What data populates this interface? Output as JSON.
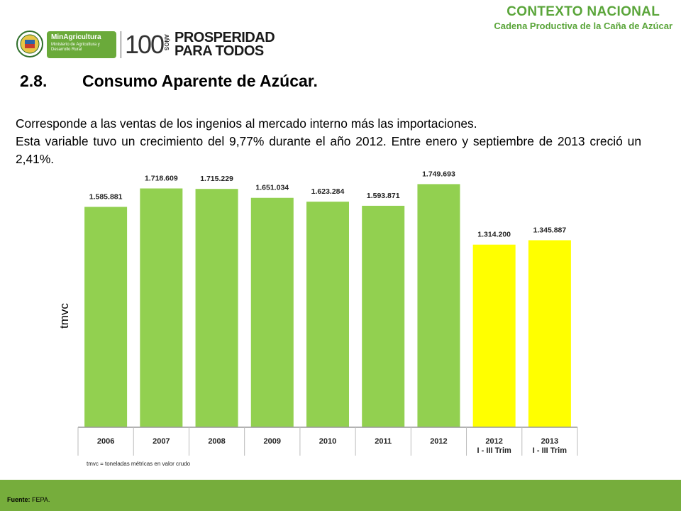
{
  "header": {
    "context_title": "CONTEXTO NACIONAL",
    "context_subtitle": "Cadena Productiva de la Caña de Azúcar",
    "ministry_name": "MinAgricultura",
    "ministry_subtitle": "Ministerio de Agricultura y Desarrollo Rural",
    "hundred": "100",
    "anos": "AÑOS",
    "prosperidad_line1": "PROSPERIDAD",
    "prosperidad_line2": "PARA TODOS"
  },
  "section": {
    "number": "2.8.",
    "title": "Consumo Aparente de Azúcar."
  },
  "paragraph": {
    "line1": "Corresponde a las ventas de los ingenios al mercado interno más las importaciones.",
    "line2": "Esta variable tuvo un crecimiento del 9,77% durante el año 2012. Entre enero y septiembre de 2013 creció un 2,41%."
  },
  "chart_data": {
    "type": "bar",
    "ylabel": "tmvc",
    "categories": [
      [
        "2006"
      ],
      [
        "2007"
      ],
      [
        "2008"
      ],
      [
        "2009"
      ],
      [
        "2010"
      ],
      [
        "2011"
      ],
      [
        "2012"
      ],
      [
        "2012",
        "I - III Trim"
      ],
      [
        "2013",
        "I - III Trim"
      ]
    ],
    "values": [
      1585881,
      1718609,
      1715229,
      1651034,
      1623284,
      1593871,
      1749693,
      1314200,
      1345887
    ],
    "value_labels": [
      "1.585.881",
      "1.718.609",
      "1.715.229",
      "1.651.034",
      "1.623.284",
      "1.593.871",
      "1.749.693",
      "1.314.200",
      "1.345.887"
    ],
    "bar_colors": [
      "#92d050",
      "#92d050",
      "#92d050",
      "#92d050",
      "#92d050",
      "#92d050",
      "#92d050",
      "#ffff00",
      "#ffff00"
    ],
    "ylim": [
      0,
      1900000
    ],
    "grid": false,
    "legend": "none"
  },
  "footnote": "tmvc = toneladas métricas en valor crudo",
  "footer": {
    "source_label": "Fuente:",
    "source_value": "FEPA."
  }
}
